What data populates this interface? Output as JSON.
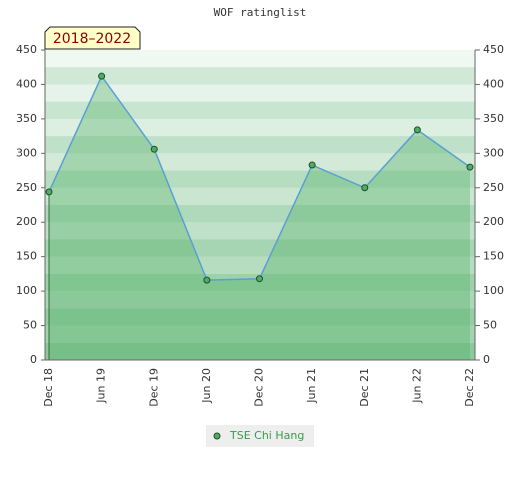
{
  "chart_data": {
    "type": "line",
    "title": "WOF ratinglist",
    "annotation": "2018–2022",
    "categories": [
      "Dec 18",
      "Jun 19",
      "Dec 19",
      "Jun 20",
      "Dec 20",
      "Jun 21",
      "Dec 21",
      "Jun 22",
      "Dec 22"
    ],
    "series": [
      {
        "name": "TSE Chi Hang",
        "color": "#5a9fd4",
        "marker_color": "#4caf60",
        "values": [
          244,
          412,
          306,
          116,
          118,
          283,
          250,
          334,
          280
        ]
      }
    ],
    "ylim": [
      0,
      450
    ],
    "yticks": [
      0,
      50,
      100,
      150,
      200,
      250,
      300,
      350,
      400,
      450
    ],
    "y2lim": [
      0,
      450
    ],
    "y2ticks": [
      0,
      50,
      100,
      150,
      200,
      250,
      300,
      350,
      400,
      450
    ]
  }
}
